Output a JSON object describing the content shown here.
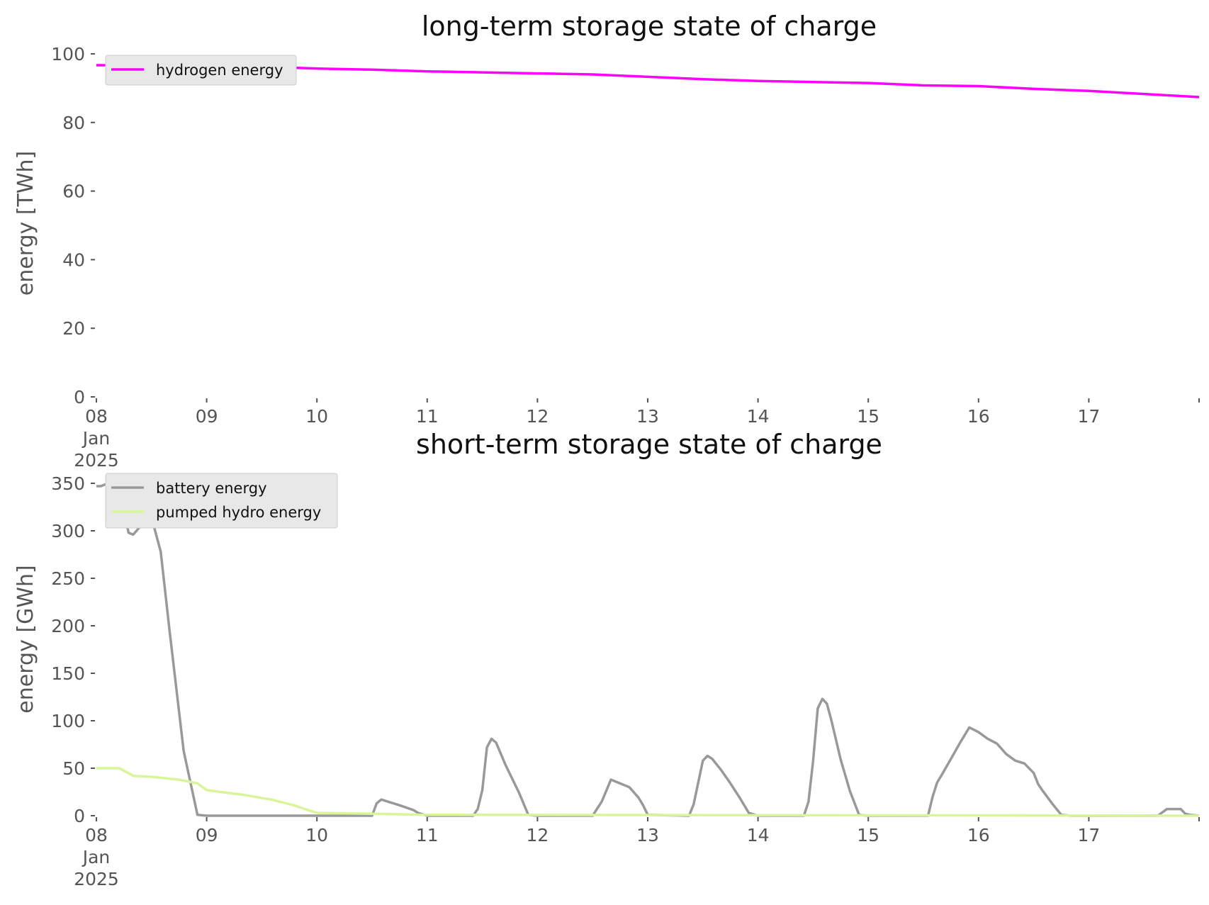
{
  "chart_data": [
    {
      "type": "line",
      "title": "long-term storage state of charge",
      "xlabel": "",
      "ylabel": "energy [TWh]",
      "ylim": [
        0,
        100
      ],
      "xlim": [
        "2025-01-08 00:00",
        "2025-01-18 00:00"
      ],
      "y_ticks": [
        0,
        20,
        40,
        60,
        80,
        100
      ],
      "x_tick_labels": [
        [
          "08",
          "Jan",
          "2025"
        ],
        [
          "09"
        ],
        [
          "10"
        ],
        [
          "11"
        ],
        [
          "12"
        ],
        [
          "13"
        ],
        [
          "14"
        ],
        [
          "15"
        ],
        [
          "16"
        ],
        [
          "17"
        ],
        [
          ""
        ]
      ],
      "grid": false,
      "legend_position": "upper-left",
      "series": [
        {
          "name": "hydrogen energy",
          "color": "#ff00ff",
          "x": [
            "2025-01-08 00:00",
            "2025-01-08 12:00",
            "2025-01-09 00:00",
            "2025-01-09 12:00",
            "2025-01-10 00:00",
            "2025-01-10 12:00",
            "2025-01-11 00:00",
            "2025-01-11 12:00",
            "2025-01-12 00:00",
            "2025-01-12 12:00",
            "2025-01-13 00:00",
            "2025-01-13 12:00",
            "2025-01-14 00:00",
            "2025-01-14 12:00",
            "2025-01-15 00:00",
            "2025-01-15 12:00",
            "2025-01-16 00:00",
            "2025-01-16 12:00",
            "2025-01-17 00:00",
            "2025-01-17 12:00",
            "2025-01-18 00:00"
          ],
          "values": [
            96.7,
            96.6,
            96.5,
            96.3,
            95.7,
            95.4,
            94.9,
            94.6,
            94.3,
            94.0,
            93.3,
            92.6,
            92.1,
            91.8,
            91.5,
            90.8,
            90.6,
            89.8,
            89.2,
            88.3,
            87.4
          ]
        }
      ]
    },
    {
      "type": "line",
      "title": "short-term storage state of charge",
      "xlabel": "",
      "ylabel": "energy [GWh]",
      "ylim": [
        0,
        350
      ],
      "xlim": [
        "2025-01-08 00:00",
        "2025-01-18 00:00"
      ],
      "y_ticks": [
        0,
        50,
        100,
        150,
        200,
        250,
        300,
        350
      ],
      "x_tick_labels": [
        [
          "08",
          "Jan",
          "2025"
        ],
        [
          "09"
        ],
        [
          "10"
        ],
        [
          "11"
        ],
        [
          "12"
        ],
        [
          "13"
        ],
        [
          "14"
        ],
        [
          "15"
        ],
        [
          "16"
        ],
        [
          "17"
        ],
        [
          ""
        ]
      ],
      "grid": false,
      "legend_position": "upper-left",
      "series": [
        {
          "name": "battery energy",
          "color": "#999999",
          "x": [
            "2025-01-08 00:00",
            "2025-01-08 01:00",
            "2025-01-08 02:00",
            "2025-01-08 04:00",
            "2025-01-08 06:00",
            "2025-01-08 07:00",
            "2025-01-08 08:00",
            "2025-01-08 10:00",
            "2025-01-08 12:00",
            "2025-01-08 14:00",
            "2025-01-08 16:00",
            "2025-01-08 19:00",
            "2025-01-08 22:00",
            "2025-01-09 00:00",
            "2025-01-10 12:00",
            "2025-01-10 13:00",
            "2025-01-10 14:00",
            "2025-01-10 18:00",
            "2025-01-10 21:00",
            "2025-01-10 22:00",
            "2025-01-11 00:00",
            "2025-01-11 10:00",
            "2025-01-11 11:00",
            "2025-01-11 12:00",
            "2025-01-11 13:00",
            "2025-01-11 14:00",
            "2025-01-11 15:00",
            "2025-01-11 17:00",
            "2025-01-11 20:00",
            "2025-01-11 22:00",
            "2025-01-12 00:00",
            "2025-01-12 12:00",
            "2025-01-12 14:00",
            "2025-01-12 16:00",
            "2025-01-12 20:00",
            "2025-01-12 22:00",
            "2025-01-12 23:00",
            "2025-01-13 00:00",
            "2025-01-13 09:00",
            "2025-01-13 10:00",
            "2025-01-13 12:00",
            "2025-01-13 13:00",
            "2025-01-13 14:00",
            "2025-01-13 16:00",
            "2025-01-13 18:00",
            "2025-01-13 20:00",
            "2025-01-13 22:00",
            "2025-01-14 00:00",
            "2025-01-14 10:00",
            "2025-01-14 11:00",
            "2025-01-14 12:00",
            "2025-01-14 13:00",
            "2025-01-14 14:00",
            "2025-01-14 15:00",
            "2025-01-14 16:00",
            "2025-01-14 18:00",
            "2025-01-14 20:00",
            "2025-01-14 22:00",
            "2025-01-15 00:00",
            "2025-01-15 13:00",
            "2025-01-15 14:00",
            "2025-01-15 15:00",
            "2025-01-15 16:00",
            "2025-01-15 18:00",
            "2025-01-15 20:00",
            "2025-01-15 22:00",
            "2025-01-16 00:00",
            "2025-01-16 02:00",
            "2025-01-16 04:00",
            "2025-01-16 06:00",
            "2025-01-16 08:00",
            "2025-01-16 10:00",
            "2025-01-16 12:00",
            "2025-01-16 13:00",
            "2025-01-16 14:00",
            "2025-01-16 16:00",
            "2025-01-16 18:00",
            "2025-01-16 20:00",
            "2025-01-16 22:00",
            "2025-01-16 23:00",
            "2025-01-17 00:00",
            "2025-01-17 15:00",
            "2025-01-17 17:00",
            "2025-01-17 20:00",
            "2025-01-17 21:00",
            "2025-01-17 22:00",
            "2025-01-18 00:00"
          ],
          "values": [
            347,
            347,
            349,
            347,
            322,
            298,
            296,
            307,
            314,
            278,
            192,
            68,
            1,
            0,
            0,
            13,
            17,
            11,
            6,
            3,
            0,
            0,
            7,
            27,
            72,
            81,
            77,
            54,
            24,
            1,
            0,
            0,
            15,
            38,
            30,
            19,
            11,
            1,
            0,
            12,
            58,
            63,
            60,
            48,
            34,
            19,
            3,
            0,
            0,
            15,
            58,
            113,
            123,
            118,
            100,
            59,
            26,
            1,
            0,
            0,
            20,
            35,
            43,
            60,
            77,
            93,
            88,
            81,
            76,
            65,
            58,
            55,
            45,
            33,
            26,
            13,
            1,
            0,
            0,
            0,
            0,
            0,
            7,
            7,
            2,
            1,
            0
          ],
          "fill_values": []
        },
        {
          "name": "pumped hydro energy",
          "color": "#d9f59a",
          "x": [
            "2025-01-08 00:00",
            "2025-01-08 05:00",
            "2025-01-08 08:00",
            "2025-01-08 12:00",
            "2025-01-08 18:00",
            "2025-01-08 22:00",
            "2025-01-09 00:00",
            "2025-01-09 03:00",
            "2025-01-09 08:00",
            "2025-01-09 14:00",
            "2025-01-09 19:00",
            "2025-01-09 22:00",
            "2025-01-10 00:00",
            "2025-01-10 12:00",
            "2025-01-11 00:00",
            "2025-01-18 00:00"
          ],
          "values": [
            50,
            50,
            42,
            41,
            38,
            34,
            27,
            25,
            22,
            17,
            11,
            6,
            3,
            2,
            1,
            0
          ]
        }
      ]
    }
  ]
}
